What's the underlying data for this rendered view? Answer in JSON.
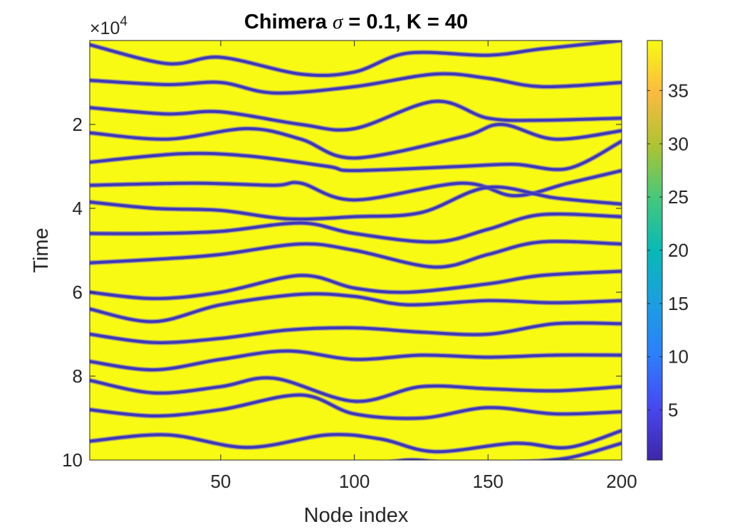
{
  "chart_data": {
    "type": "heatmap",
    "title_prefix": "Chimera ",
    "title_symbol": "σ",
    "title_suffix": " = 0.1, K = 40",
    "xlabel": "Node index",
    "ylabel": "Time",
    "y_multiplier": "×10",
    "y_exponent": "4",
    "xlim": [
      1,
      200
    ],
    "ylim": [
      0,
      10
    ],
    "y_reversed": true,
    "x_ticks": [
      50,
      100,
      150,
      200
    ],
    "y_ticks": [
      2,
      4,
      6,
      8,
      10
    ],
    "colorbar": {
      "range": [
        0.3,
        39.7
      ],
      "ticks": [
        5,
        10,
        15,
        20,
        25,
        30,
        35
      ],
      "colormap": "parula"
    },
    "colors": {
      "background": "#f8fa13",
      "band": "#3d37b8",
      "band_edge": "#6c5fd8"
    },
    "bands": [
      {
        "x": [
          1,
          30,
          50,
          80,
          100,
          120,
          150,
          170,
          200
        ],
        "y": [
          0.1,
          0.55,
          0.4,
          0.8,
          0.75,
          0.3,
          0.35,
          0.2,
          0.0
        ]
      },
      {
        "x": [
          1,
          30,
          50,
          70,
          100,
          130,
          150,
          170,
          200
        ],
        "y": [
          0.95,
          1.05,
          1.0,
          1.25,
          1.1,
          0.8,
          0.9,
          1.1,
          1.0
        ]
      },
      {
        "x": [
          1,
          30,
          50,
          80,
          100,
          130,
          150,
          170,
          200
        ],
        "y": [
          1.6,
          1.75,
          1.7,
          2.0,
          2.1,
          1.45,
          1.85,
          1.9,
          1.85
        ]
      },
      {
        "x": [
          1,
          30,
          60,
          80,
          100,
          140,
          155,
          175,
          200
        ],
        "y": [
          2.2,
          2.35,
          2.1,
          2.35,
          2.8,
          2.3,
          2.0,
          2.35,
          2.15
        ]
      },
      {
        "x": [
          1,
          35,
          60,
          90,
          100,
          140,
          160,
          180,
          200
        ],
        "y": [
          2.9,
          2.7,
          2.75,
          3.0,
          3.1,
          3.0,
          2.95,
          3.05,
          2.4
        ]
      },
      {
        "x": [
          1,
          40,
          70,
          80,
          100,
          140,
          160,
          180,
          200
        ],
        "y": [
          3.45,
          3.4,
          3.45,
          3.4,
          3.8,
          3.4,
          3.7,
          3.4,
          3.1
        ]
      },
      {
        "x": [
          1,
          25,
          50,
          75,
          100,
          125,
          150,
          175,
          200
        ],
        "y": [
          3.85,
          4.0,
          4.05,
          4.25,
          4.2,
          4.1,
          3.5,
          3.75,
          3.9
        ]
      },
      {
        "x": [
          1,
          25,
          50,
          80,
          100,
          130,
          150,
          170,
          200
        ],
        "y": [
          4.6,
          4.6,
          4.55,
          4.35,
          4.6,
          4.8,
          4.5,
          4.15,
          4.2
        ]
      },
      {
        "x": [
          1,
          30,
          50,
          80,
          100,
          130,
          150,
          170,
          200
        ],
        "y": [
          5.3,
          5.2,
          5.1,
          4.85,
          5.0,
          5.4,
          5.1,
          4.8,
          4.85
        ]
      },
      {
        "x": [
          1,
          25,
          50,
          80,
          100,
          120,
          150,
          170,
          200
        ],
        "y": [
          6.0,
          6.15,
          6.0,
          5.6,
          5.9,
          6.0,
          5.8,
          5.6,
          5.5
        ]
      },
      {
        "x": [
          1,
          25,
          50,
          80,
          100,
          120,
          150,
          175,
          200
        ],
        "y": [
          6.4,
          6.7,
          6.3,
          6.05,
          6.1,
          6.3,
          6.2,
          6.25,
          6.2
        ]
      },
      {
        "x": [
          1,
          25,
          50,
          75,
          100,
          125,
          150,
          175,
          200
        ],
        "y": [
          7.0,
          7.2,
          7.1,
          6.9,
          6.85,
          6.95,
          7.0,
          6.75,
          6.75
        ]
      },
      {
        "x": [
          1,
          25,
          50,
          75,
          100,
          125,
          150,
          175,
          200
        ],
        "y": [
          7.65,
          7.85,
          7.6,
          7.4,
          7.6,
          7.5,
          7.55,
          7.5,
          7.5
        ]
      },
      {
        "x": [
          1,
          25,
          50,
          70,
          100,
          125,
          150,
          175,
          200
        ],
        "y": [
          8.1,
          8.4,
          8.25,
          8.05,
          8.6,
          8.25,
          8.3,
          8.35,
          8.25
        ]
      },
      {
        "x": [
          1,
          25,
          50,
          80,
          100,
          125,
          150,
          175,
          200
        ],
        "y": [
          8.8,
          8.95,
          8.8,
          8.45,
          8.9,
          9.0,
          8.75,
          8.9,
          8.85
        ]
      },
      {
        "x": [
          1,
          30,
          60,
          90,
          110,
          130,
          160,
          180,
          200
        ],
        "y": [
          9.55,
          9.4,
          9.7,
          9.4,
          9.5,
          9.8,
          9.6,
          9.7,
          9.3
        ]
      },
      {
        "x": [
          100,
          120,
          140,
          160,
          180,
          200
        ],
        "y": [
          10.2,
          10.0,
          10.1,
          10.05,
          9.95,
          9.6
        ]
      }
    ]
  }
}
